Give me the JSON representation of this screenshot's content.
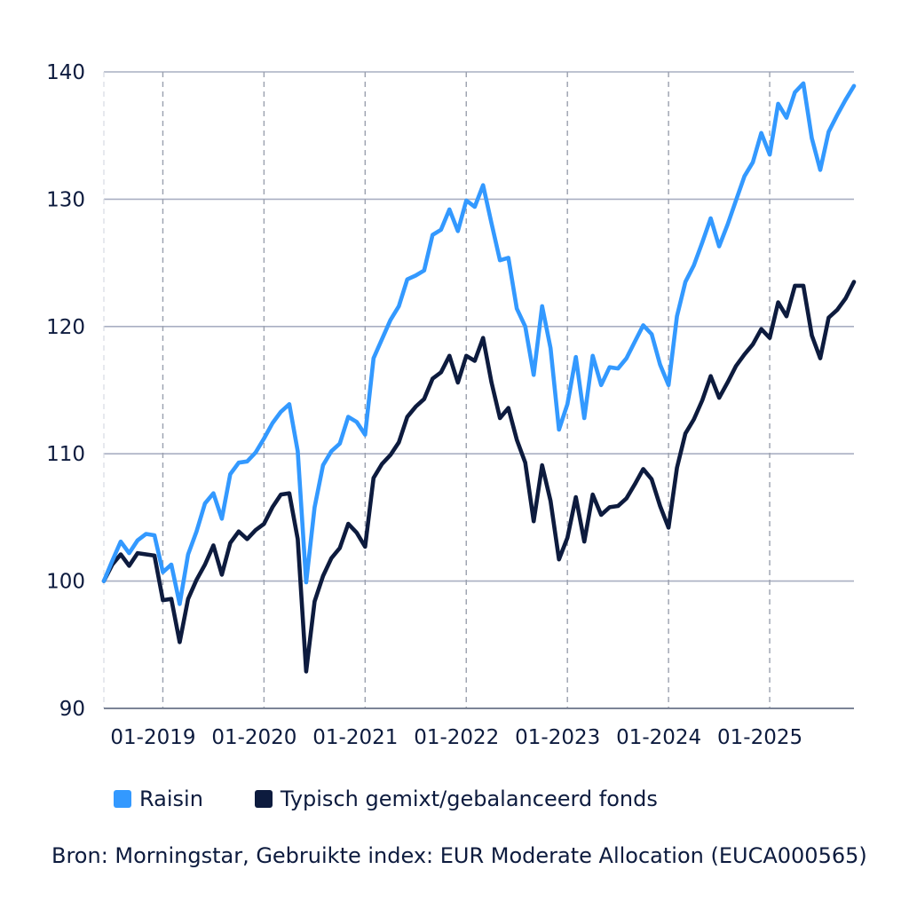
{
  "chart_data": {
    "type": "line",
    "title": "",
    "xlabel": "",
    "ylabel": "",
    "ylim": [
      90,
      140
    ],
    "yticks": [
      90,
      100,
      110,
      120,
      130,
      140
    ],
    "xlim_months": [
      0,
      89
    ],
    "xticks": [
      {
        "label": "01-2019",
        "month": 7
      },
      {
        "label": "01-2020",
        "month": 19
      },
      {
        "label": "01-2021",
        "month": 31
      },
      {
        "label": "01-2022",
        "month": 43
      },
      {
        "label": "01-2023",
        "month": 55
      },
      {
        "label": "01-2024",
        "month": 67
      },
      {
        "label": "01-2025",
        "month": 79
      }
    ],
    "x_start": "06-2018",
    "x_interval": "monthly",
    "grid": true,
    "legend_position": "bottom",
    "series": [
      {
        "name": "Raisin",
        "color": "#3399ff",
        "values": [
          100.0,
          101.6,
          103.1,
          102.2,
          103.2,
          103.7,
          103.6,
          100.7,
          101.3,
          98.2,
          102.1,
          103.9,
          106.1,
          106.9,
          104.9,
          108.4,
          109.3,
          109.4,
          110.1,
          111.2,
          112.4,
          113.3,
          113.9,
          110.2,
          99.9,
          105.8,
          109.1,
          110.2,
          110.8,
          112.9,
          112.5,
          111.5,
          117.5,
          119.0,
          120.5,
          121.6,
          123.7,
          124.0,
          124.4,
          127.2,
          127.6,
          129.2,
          127.5,
          129.9,
          129.4,
          131.1,
          128.1,
          125.2,
          125.4,
          121.4,
          120.0,
          116.2,
          121.6,
          118.3,
          111.9,
          113.9,
          117.6,
          112.8,
          117.7,
          115.4,
          116.8,
          116.7,
          117.5,
          118.8,
          120.1,
          119.4,
          117.0,
          115.4,
          120.8,
          123.5,
          124.8,
          126.6,
          128.5,
          126.3,
          128.0,
          129.9,
          131.8,
          132.9,
          135.2,
          133.5,
          137.5,
          136.4,
          138.4,
          139.1,
          134.8,
          132.3,
          135.3,
          136.6,
          137.8,
          138.9
        ]
      },
      {
        "name": "Typisch gemixt/gebalanceerd fonds",
        "color": "#0d1b3e",
        "values": [
          100.0,
          101.3,
          102.1,
          101.2,
          102.2,
          102.1,
          102.0,
          98.5,
          98.6,
          95.2,
          98.6,
          100.1,
          101.3,
          102.8,
          100.5,
          103.0,
          103.9,
          103.3,
          104.0,
          104.5,
          105.8,
          106.8,
          106.9,
          103.3,
          92.9,
          98.4,
          100.4,
          101.8,
          102.6,
          104.5,
          103.8,
          102.7,
          108.1,
          109.2,
          109.9,
          110.9,
          112.9,
          113.7,
          114.3,
          115.9,
          116.4,
          117.7,
          115.6,
          117.7,
          117.3,
          119.1,
          115.6,
          112.8,
          113.6,
          111.1,
          109.3,
          104.7,
          109.1,
          106.3,
          101.7,
          103.4,
          106.6,
          103.1,
          106.8,
          105.2,
          105.8,
          105.9,
          106.5,
          107.6,
          108.8,
          108.0,
          105.9,
          104.2,
          108.9,
          111.6,
          112.7,
          114.2,
          116.1,
          114.4,
          115.6,
          116.9,
          117.8,
          118.6,
          119.8,
          119.1,
          121.9,
          120.8,
          123.2,
          123.2,
          119.3,
          117.5,
          120.7,
          121.3,
          122.2,
          123.5
        ]
      }
    ]
  },
  "legend": {
    "items": [
      {
        "label": "Raisin",
        "color": "#3399ff"
      },
      {
        "label": "Typisch gemixt/gebalanceerd fonds",
        "color": "#0d1b3e"
      }
    ]
  },
  "source": {
    "text": "Bron: Morningstar, Gebruikte index: EUR Moderate Allocation (EUCA000565)"
  }
}
